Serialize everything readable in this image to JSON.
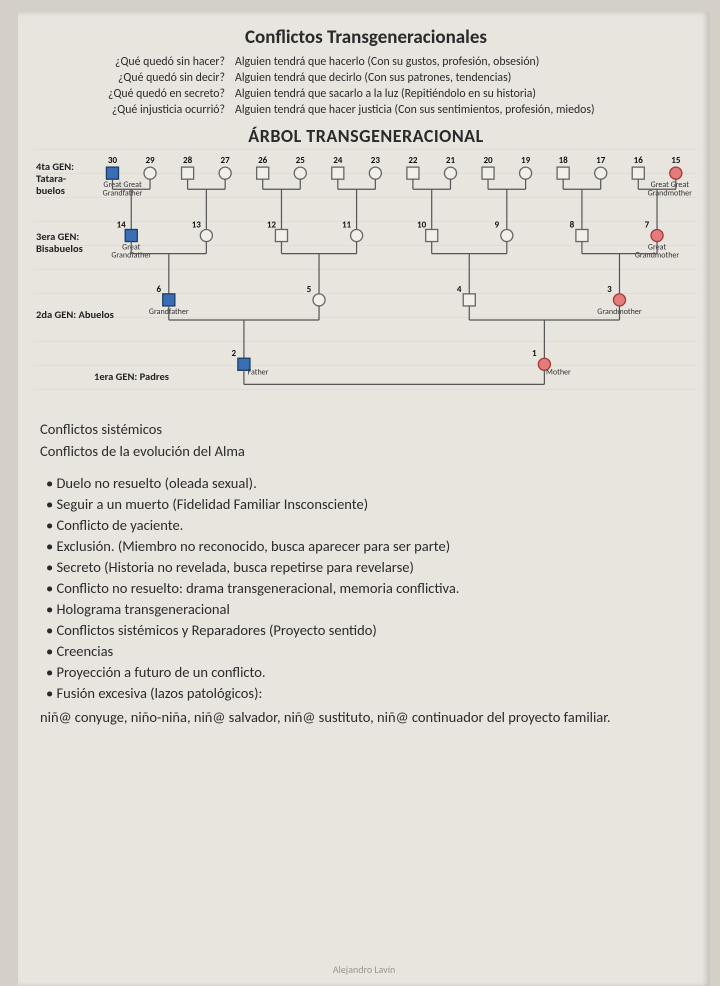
{
  "title_main": "Conflictos Transgeneracionales",
  "qa": {
    "q": [
      "¿Qué quedó sin hacer?",
      "¿Qué quedó sin decir?",
      "¿Qué quedó en secreto?",
      "¿Qué injusticia ocurrió?"
    ],
    "a": [
      "Alguien tendrá que hacerlo (Con su gustos, profesión, obsesión)",
      "Alguien tendrá que decirlo (Con sus patrones, tendencias)",
      "Alguien tendrá que sacarlo a la luz (Repitiéndolo en su historia)",
      "Alguien tendrá que hacer justicia (Con sus sentimientos, profesión, miedos)"
    ]
  },
  "title_tree": "ÁRBOL TRANSGENERACIONAL",
  "gen_labels": {
    "g4a": "4ta GEN:",
    "g4b": "Tatara-",
    "g4c": "buelos",
    "g3a": "3era GEN:",
    "g3b": "Bisabuelos",
    "g2": "2da GEN: Abuelos",
    "g1": "1era GEN: Padres"
  },
  "tree": {
    "colors": {
      "line": "#555555",
      "node_empty_fill": "#f2efe9",
      "node_stroke": "#666666",
      "male_fill": "#3b6fb5",
      "male_stroke": "#1d3c66",
      "female_fill": "#e57b7b",
      "female_stroke": "#a03a3a"
    },
    "role_labels": {
      "ggf": "Great Great\nGrandfather",
      "ggm": "Great Great\nGrandmother",
      "gf3": "Great\nGrandfather",
      "gm3": "Great\nGrandmother",
      "gf": "Grandfather",
      "gm": "Grandmother",
      "father": "Father",
      "mother": "Mother"
    },
    "gen4_numbers": [
      30,
      29,
      28,
      27,
      26,
      25,
      24,
      23,
      22,
      21,
      20,
      19,
      18,
      17,
      16,
      15
    ],
    "gen3_numbers": [
      14,
      13,
      12,
      11,
      10,
      9,
      8,
      7
    ],
    "gen2_numbers": [
      6,
      5,
      4,
      3
    ],
    "gen1_numbers": [
      2,
      1
    ]
  },
  "body": {
    "line1": "Conflictos sistémicos",
    "line2": "Conflictos de la evolución del Alma",
    "bullets": [
      "Duelo no resuelto (oleada sexual).",
      "Seguir a un muerto (Fidelidad Familiar Insconsciente)",
      "Conflicto de yaciente.",
      "Exclusión. (Miembro no reconocido, busca aparecer para ser parte)",
      "Secreto (Historia no revelada, busca repetirse para revelarse)",
      "Conflicto no resuelto: drama transgeneracional, memoria conflictiva.",
      "Holograma transgeneracional",
      "Conflictos sistémicos y Reparadores (Proyecto sentido)",
      "Creencias",
      "Proyección a futuro de un conflicto.",
      "Fusión excesiva (lazos patológicos):"
    ],
    "trail": "niñ@ conyuge, niño-niña, niñ@ salvador, niñ@ sustituto, niñ@ continuador del proyecto familiar."
  },
  "footer": "Alejandro Lavín"
}
